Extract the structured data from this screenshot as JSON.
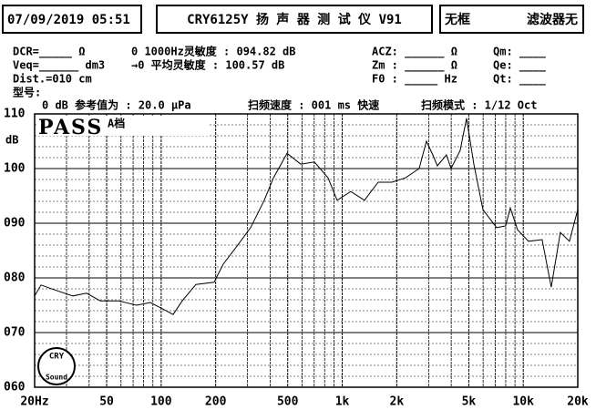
{
  "header": {
    "datetime": "07/09/2019 05:51",
    "device": "CRY6125Y 扬 声 器 测 试 仪  V91",
    "frame": "无框",
    "filter": "滤波器无"
  },
  "info": {
    "dcr": "DCR=_____ Ω",
    "veq": "Veq=______ dm3",
    "dist": "Dist.=010 cm",
    "model": "型号:",
    "sens1k": "0 1000Hz灵敏度 : 094.82 dB",
    "sens_avg": "→0 平均灵敏度 : 100.57 dB",
    "acz": "ACZ: ______ Ω",
    "zm": "Zm : ______ Ω",
    "f0": "F0 : _____ Hz",
    "qm": "Qm: ____",
    "qe": "Qe: ____",
    "qt": "Qt: ____",
    "ref": "0 dB 参考值为 : 20.0 μPa",
    "speed": "扫频速度 : 001 ms 快速",
    "mode": "扫频模式 : 1/12 Oct",
    "result": "PASS",
    "range": "A档",
    "logo_top": "CRY",
    "logo_bottom": "Sound"
  },
  "chart_data": {
    "type": "line",
    "y_label": "dB",
    "log_x": true,
    "color": "#000000",
    "x": [
      20,
      21.7,
      25.8,
      32.5,
      38.7,
      46.1,
      58.1,
      73.2,
      87.1,
      103.7,
      116.4,
      130.7,
      155.6,
      196,
      220,
      262,
      312,
      371,
      417,
      496,
      590,
      702,
      835,
      937,
      1115,
      1327,
      1579,
      1879,
      2235,
      2660,
      2918,
      3165,
      3353,
      3765,
      3990,
      4480,
      4860,
      5333,
      5987,
      7121,
      7995,
      8477,
      9300,
      10690,
      12710,
      14270,
      16020,
      17990,
      20000
    ],
    "values": [
      76.7,
      78.7,
      77.8,
      76.7,
      77.2,
      75.8,
      75.8,
      75,
      75.5,
      74.2,
      73.3,
      75.8,
      78.8,
      79.2,
      82.5,
      85.8,
      89.2,
      94.2,
      98.3,
      102.8,
      100.8,
      101.2,
      98.3,
      94.2,
      95.8,
      94.2,
      97.5,
      97.5,
      98.3,
      100,
      105,
      102.5,
      100.5,
      102.5,
      100,
      103.3,
      109.2,
      100.8,
      92.5,
      89.2,
      89.5,
      92.8,
      88.8,
      86.7,
      87,
      78.3,
      88.3,
      86.7,
      92.5
    ],
    "xlim": [
      20,
      20000
    ],
    "xticks": [
      {
        "value": 20,
        "label": "20Hz"
      },
      50,
      100,
      200,
      500,
      {
        "value": 1000,
        "label": "1k"
      },
      {
        "value": 2000,
        "label": "2k"
      },
      {
        "value": 5000,
        "label": "5k"
      },
      {
        "value": 10000,
        "label": "10k"
      },
      {
        "value": 20000,
        "label": "20k"
      }
    ],
    "xminorticks": [
      30,
      40,
      60,
      70,
      80,
      90,
      300,
      400,
      600,
      700,
      800,
      900,
      3000,
      4000,
      6000,
      7000,
      8000,
      9000
    ],
    "ylim": [
      60,
      110
    ],
    "yticks": [
      {
        "value": 60,
        "label": "060"
      },
      {
        "value": 70,
        "label": "070"
      },
      {
        "value": 80,
        "label": "080"
      },
      {
        "value": 90,
        "label": "090"
      },
      100,
      110
    ],
    "yminorticks": [
      62,
      64,
      66,
      68,
      72,
      74,
      76,
      78,
      82,
      84,
      86,
      88,
      92,
      94,
      96,
      98,
      102,
      104,
      106,
      108
    ],
    "grid": true
  }
}
